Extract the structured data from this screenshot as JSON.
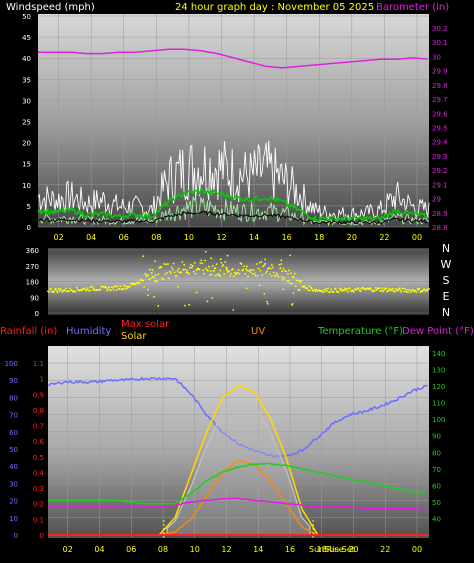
{
  "header": {
    "windspeed_label": "Windspeed (mph)",
    "title": "24 hour graph day : November 05 2025",
    "barometer_label": "Barometer (in)"
  },
  "legend2": {
    "rainfall": "Rainfall (in)",
    "humidity": "Humidity",
    "max_solar": "Max solar",
    "solar": "Solar",
    "uv": "UV",
    "temperature": "Temperature (°F)",
    "dew_point": "Dew Point (°F)"
  },
  "direction_letters": [
    "N",
    "W",
    "S",
    "E",
    "N"
  ],
  "sun_labels": {
    "sunrise": "Sun Rise",
    "sunset": "Sun Set"
  },
  "colors": {
    "windspeed": "#ffffff",
    "avg_wind": "#00cc00",
    "wind_min": "#a8e8a8",
    "barometer": "#e020e0",
    "direction": "#ffff00",
    "rainfall": "#ff2020",
    "humidity": "#7070ff",
    "max_solar": "#ffd700",
    "solar": "#c0c0c0",
    "uv": "#ff8800",
    "temperature": "#22cc22",
    "dew_point": "#e020e0"
  },
  "chart_data": [
    {
      "type": "line",
      "name": "wind-barometer",
      "x_ticks": [
        "02",
        "04",
        "06",
        "08",
        "10",
        "12",
        "14",
        "16",
        "18",
        "20",
        "22",
        "00"
      ],
      "ylim_left": [
        0,
        50
      ],
      "y_ticks_left": [
        "0",
        "5",
        "10",
        "15",
        "20",
        "25",
        "30",
        "35",
        "40",
        "45",
        "50"
      ],
      "ylim_right": [
        28.8,
        30.2
      ],
      "y_ticks_right": [
        "28.8",
        "28.9",
        "29",
        "29.1",
        "29.2",
        "29.3",
        "29.4",
        "29.5",
        "29.6",
        "29.7",
        "29.8",
        "29.9",
        "30",
        "30.1",
        "30.2"
      ],
      "x_hours": [
        0,
        1,
        2,
        3,
        4,
        5,
        6,
        7,
        8,
        9,
        10,
        11,
        12,
        13,
        14,
        15,
        16,
        17,
        18,
        19,
        20,
        21,
        22,
        23,
        24
      ],
      "series": [
        {
          "name": "Windspeed (mph)",
          "axis": "left",
          "values": [
            9,
            8,
            9,
            7,
            8,
            6,
            6,
            5,
            14,
            17,
            18,
            18,
            16,
            15,
            17,
            14,
            10,
            5,
            4,
            4,
            4,
            5,
            9,
            6,
            5
          ]
        },
        {
          "name": "Barometer (in)",
          "axis": "right",
          "values": [
            30.03,
            30.03,
            30.03,
            30.02,
            30.02,
            30.03,
            30.03,
            30.04,
            30.05,
            30.05,
            30.04,
            30.02,
            29.99,
            29.96,
            29.93,
            29.92,
            29.93,
            29.94,
            29.95,
            29.96,
            29.97,
            29.98,
            29.98,
            29.99,
            29.98
          ]
        },
        {
          "name": "avg",
          "axis": "left",
          "values": [
            4,
            3.5,
            4,
            3,
            3,
            2.5,
            3,
            2.5,
            6,
            8,
            8.5,
            8,
            7,
            6.5,
            7,
            6,
            4,
            2,
            2,
            2,
            2,
            2,
            4,
            3,
            2.5
          ]
        }
      ]
    },
    {
      "type": "scatter",
      "name": "wind-direction",
      "y_ticks": [
        "0",
        "90",
        "180",
        "270",
        "360"
      ],
      "ylim": [
        0,
        360
      ],
      "x_hours": [
        0,
        1,
        2,
        3,
        4,
        5,
        6,
        7,
        8,
        9,
        10,
        11,
        12,
        13,
        14,
        15,
        16,
        17,
        18,
        19,
        20,
        21,
        22,
        23,
        24
      ],
      "values": [
        130,
        130,
        135,
        140,
        140,
        150,
        190,
        230,
        250,
        260,
        255,
        250,
        240,
        245,
        250,
        230,
        150,
        130,
        130,
        130,
        135,
        135,
        130,
        130,
        130
      ]
    },
    {
      "type": "line",
      "name": "temp-humidity-solar",
      "x_ticks": [
        "02",
        "04",
        "06",
        "08",
        "10",
        "12",
        "14",
        "16",
        "18",
        "20",
        "22",
        "00"
      ],
      "y_ticks_humidity": [
        "0",
        "10",
        "20",
        "30",
        "40",
        "50",
        "60",
        "70",
        "80",
        "90",
        "100"
      ],
      "ylim_humidity": [
        0,
        100
      ],
      "y_ticks_rain": [
        "0",
        "0.1",
        "0.2",
        "0.3",
        "0.4",
        "0.5",
        "0.6",
        "0.7",
        "0.8",
        "0.9",
        "1",
        "1.1"
      ],
      "ylim_rain": [
        0,
        1.1
      ],
      "y_ticks_temp": [
        "40",
        "50",
        "60",
        "70",
        "80",
        "90",
        "100",
        "110",
        "120",
        "130",
        "140"
      ],
      "ylim_temp": [
        30,
        140
      ],
      "x_hours": [
        0,
        1,
        2,
        3,
        4,
        5,
        6,
        7,
        8,
        9,
        10,
        11,
        12,
        13,
        14,
        15,
        16,
        17,
        18,
        19,
        20,
        21,
        22,
        23,
        24
      ],
      "series": [
        {
          "name": "Humidity",
          "values": [
            87,
            89,
            89,
            89,
            90,
            90,
            91,
            91,
            91,
            82,
            70,
            60,
            53,
            49,
            46,
            46,
            49,
            57,
            65,
            70,
            72,
            75,
            79,
            84,
            87
          ]
        },
        {
          "name": "Temperature (°F)",
          "values": [
            51,
            51,
            51,
            51,
            51,
            50,
            49,
            49,
            49,
            55,
            63,
            68,
            71,
            73,
            73,
            72,
            70,
            68,
            66,
            64,
            62,
            60,
            58,
            56,
            56
          ]
        },
        {
          "name": "Dew Point (°F)",
          "values": [
            47,
            47,
            47,
            47,
            47,
            47,
            47,
            47,
            48,
            50,
            51,
            52,
            52,
            51,
            50,
            49,
            48,
            47,
            47,
            47,
            46,
            46,
            46,
            46,
            45
          ]
        },
        {
          "name": "Max solar",
          "values": [
            0,
            0,
            0,
            0,
            0,
            0,
            0,
            0,
            10,
            35,
            60,
            80,
            87,
            83,
            68,
            45,
            15,
            0,
            0,
            0,
            0,
            0,
            0,
            0,
            0
          ]
        },
        {
          "name": "Solar",
          "values": [
            0,
            0,
            0,
            0,
            0,
            0,
            0,
            0,
            8,
            28,
            52,
            72,
            78,
            75,
            60,
            38,
            10,
            0,
            0,
            0,
            0,
            0,
            0,
            0,
            0
          ]
        },
        {
          "name": "UV",
          "values": [
            0,
            0,
            0,
            0,
            0,
            0,
            0,
            0,
            0.2,
            1,
            2.5,
            4,
            4.8,
            4.5,
            3.5,
            2,
            0.5,
            0,
            0,
            0,
            0,
            0,
            0,
            0,
            0
          ]
        },
        {
          "name": "Rainfall (in)",
          "values": [
            0,
            0,
            0,
            0,
            0,
            0,
            0,
            0,
            0,
            0,
            0,
            0,
            0,
            0,
            0,
            0,
            0,
            0,
            0,
            0,
            0,
            0,
            0,
            0,
            0
          ]
        }
      ]
    }
  ]
}
